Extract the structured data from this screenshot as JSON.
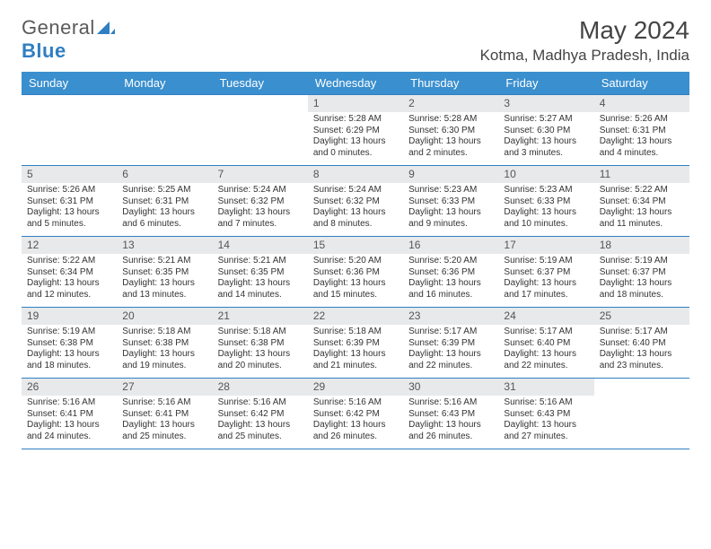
{
  "brand": {
    "part1": "General",
    "part2": "Blue"
  },
  "title": "May 2024",
  "location": "Kotma, Madhya Pradesh, India",
  "colors": {
    "header_bg": "#3a8fce",
    "header_text": "#ffffff",
    "cell_num_bg": "#e8e9ea",
    "rule": "#2f7fc2",
    "body_text": "#333333"
  },
  "day_headers": [
    "Sunday",
    "Monday",
    "Tuesday",
    "Wednesday",
    "Thursday",
    "Friday",
    "Saturday"
  ],
  "weeks": [
    [
      {
        "n": "",
        "l1": "",
        "l2": "",
        "l3": "",
        "l4": ""
      },
      {
        "n": "",
        "l1": "",
        "l2": "",
        "l3": "",
        "l4": ""
      },
      {
        "n": "",
        "l1": "",
        "l2": "",
        "l3": "",
        "l4": ""
      },
      {
        "n": "1",
        "l1": "Sunrise: 5:28 AM",
        "l2": "Sunset: 6:29 PM",
        "l3": "Daylight: 13 hours",
        "l4": "and 0 minutes."
      },
      {
        "n": "2",
        "l1": "Sunrise: 5:28 AM",
        "l2": "Sunset: 6:30 PM",
        "l3": "Daylight: 13 hours",
        "l4": "and 2 minutes."
      },
      {
        "n": "3",
        "l1": "Sunrise: 5:27 AM",
        "l2": "Sunset: 6:30 PM",
        "l3": "Daylight: 13 hours",
        "l4": "and 3 minutes."
      },
      {
        "n": "4",
        "l1": "Sunrise: 5:26 AM",
        "l2": "Sunset: 6:31 PM",
        "l3": "Daylight: 13 hours",
        "l4": "and 4 minutes."
      }
    ],
    [
      {
        "n": "5",
        "l1": "Sunrise: 5:26 AM",
        "l2": "Sunset: 6:31 PM",
        "l3": "Daylight: 13 hours",
        "l4": "and 5 minutes."
      },
      {
        "n": "6",
        "l1": "Sunrise: 5:25 AM",
        "l2": "Sunset: 6:31 PM",
        "l3": "Daylight: 13 hours",
        "l4": "and 6 minutes."
      },
      {
        "n": "7",
        "l1": "Sunrise: 5:24 AM",
        "l2": "Sunset: 6:32 PM",
        "l3": "Daylight: 13 hours",
        "l4": "and 7 minutes."
      },
      {
        "n": "8",
        "l1": "Sunrise: 5:24 AM",
        "l2": "Sunset: 6:32 PM",
        "l3": "Daylight: 13 hours",
        "l4": "and 8 minutes."
      },
      {
        "n": "9",
        "l1": "Sunrise: 5:23 AM",
        "l2": "Sunset: 6:33 PM",
        "l3": "Daylight: 13 hours",
        "l4": "and 9 minutes."
      },
      {
        "n": "10",
        "l1": "Sunrise: 5:23 AM",
        "l2": "Sunset: 6:33 PM",
        "l3": "Daylight: 13 hours",
        "l4": "and 10 minutes."
      },
      {
        "n": "11",
        "l1": "Sunrise: 5:22 AM",
        "l2": "Sunset: 6:34 PM",
        "l3": "Daylight: 13 hours",
        "l4": "and 11 minutes."
      }
    ],
    [
      {
        "n": "12",
        "l1": "Sunrise: 5:22 AM",
        "l2": "Sunset: 6:34 PM",
        "l3": "Daylight: 13 hours",
        "l4": "and 12 minutes."
      },
      {
        "n": "13",
        "l1": "Sunrise: 5:21 AM",
        "l2": "Sunset: 6:35 PM",
        "l3": "Daylight: 13 hours",
        "l4": "and 13 minutes."
      },
      {
        "n": "14",
        "l1": "Sunrise: 5:21 AM",
        "l2": "Sunset: 6:35 PM",
        "l3": "Daylight: 13 hours",
        "l4": "and 14 minutes."
      },
      {
        "n": "15",
        "l1": "Sunrise: 5:20 AM",
        "l2": "Sunset: 6:36 PM",
        "l3": "Daylight: 13 hours",
        "l4": "and 15 minutes."
      },
      {
        "n": "16",
        "l1": "Sunrise: 5:20 AM",
        "l2": "Sunset: 6:36 PM",
        "l3": "Daylight: 13 hours",
        "l4": "and 16 minutes."
      },
      {
        "n": "17",
        "l1": "Sunrise: 5:19 AM",
        "l2": "Sunset: 6:37 PM",
        "l3": "Daylight: 13 hours",
        "l4": "and 17 minutes."
      },
      {
        "n": "18",
        "l1": "Sunrise: 5:19 AM",
        "l2": "Sunset: 6:37 PM",
        "l3": "Daylight: 13 hours",
        "l4": "and 18 minutes."
      }
    ],
    [
      {
        "n": "19",
        "l1": "Sunrise: 5:19 AM",
        "l2": "Sunset: 6:38 PM",
        "l3": "Daylight: 13 hours",
        "l4": "and 18 minutes."
      },
      {
        "n": "20",
        "l1": "Sunrise: 5:18 AM",
        "l2": "Sunset: 6:38 PM",
        "l3": "Daylight: 13 hours",
        "l4": "and 19 minutes."
      },
      {
        "n": "21",
        "l1": "Sunrise: 5:18 AM",
        "l2": "Sunset: 6:38 PM",
        "l3": "Daylight: 13 hours",
        "l4": "and 20 minutes."
      },
      {
        "n": "22",
        "l1": "Sunrise: 5:18 AM",
        "l2": "Sunset: 6:39 PM",
        "l3": "Daylight: 13 hours",
        "l4": "and 21 minutes."
      },
      {
        "n": "23",
        "l1": "Sunrise: 5:17 AM",
        "l2": "Sunset: 6:39 PM",
        "l3": "Daylight: 13 hours",
        "l4": "and 22 minutes."
      },
      {
        "n": "24",
        "l1": "Sunrise: 5:17 AM",
        "l2": "Sunset: 6:40 PM",
        "l3": "Daylight: 13 hours",
        "l4": "and 22 minutes."
      },
      {
        "n": "25",
        "l1": "Sunrise: 5:17 AM",
        "l2": "Sunset: 6:40 PM",
        "l3": "Daylight: 13 hours",
        "l4": "and 23 minutes."
      }
    ],
    [
      {
        "n": "26",
        "l1": "Sunrise: 5:16 AM",
        "l2": "Sunset: 6:41 PM",
        "l3": "Daylight: 13 hours",
        "l4": "and 24 minutes."
      },
      {
        "n": "27",
        "l1": "Sunrise: 5:16 AM",
        "l2": "Sunset: 6:41 PM",
        "l3": "Daylight: 13 hours",
        "l4": "and 25 minutes."
      },
      {
        "n": "28",
        "l1": "Sunrise: 5:16 AM",
        "l2": "Sunset: 6:42 PM",
        "l3": "Daylight: 13 hours",
        "l4": "and 25 minutes."
      },
      {
        "n": "29",
        "l1": "Sunrise: 5:16 AM",
        "l2": "Sunset: 6:42 PM",
        "l3": "Daylight: 13 hours",
        "l4": "and 26 minutes."
      },
      {
        "n": "30",
        "l1": "Sunrise: 5:16 AM",
        "l2": "Sunset: 6:43 PM",
        "l3": "Daylight: 13 hours",
        "l4": "and 26 minutes."
      },
      {
        "n": "31",
        "l1": "Sunrise: 5:16 AM",
        "l2": "Sunset: 6:43 PM",
        "l3": "Daylight: 13 hours",
        "l4": "and 27 minutes."
      },
      {
        "n": "",
        "l1": "",
        "l2": "",
        "l3": "",
        "l4": ""
      }
    ]
  ]
}
